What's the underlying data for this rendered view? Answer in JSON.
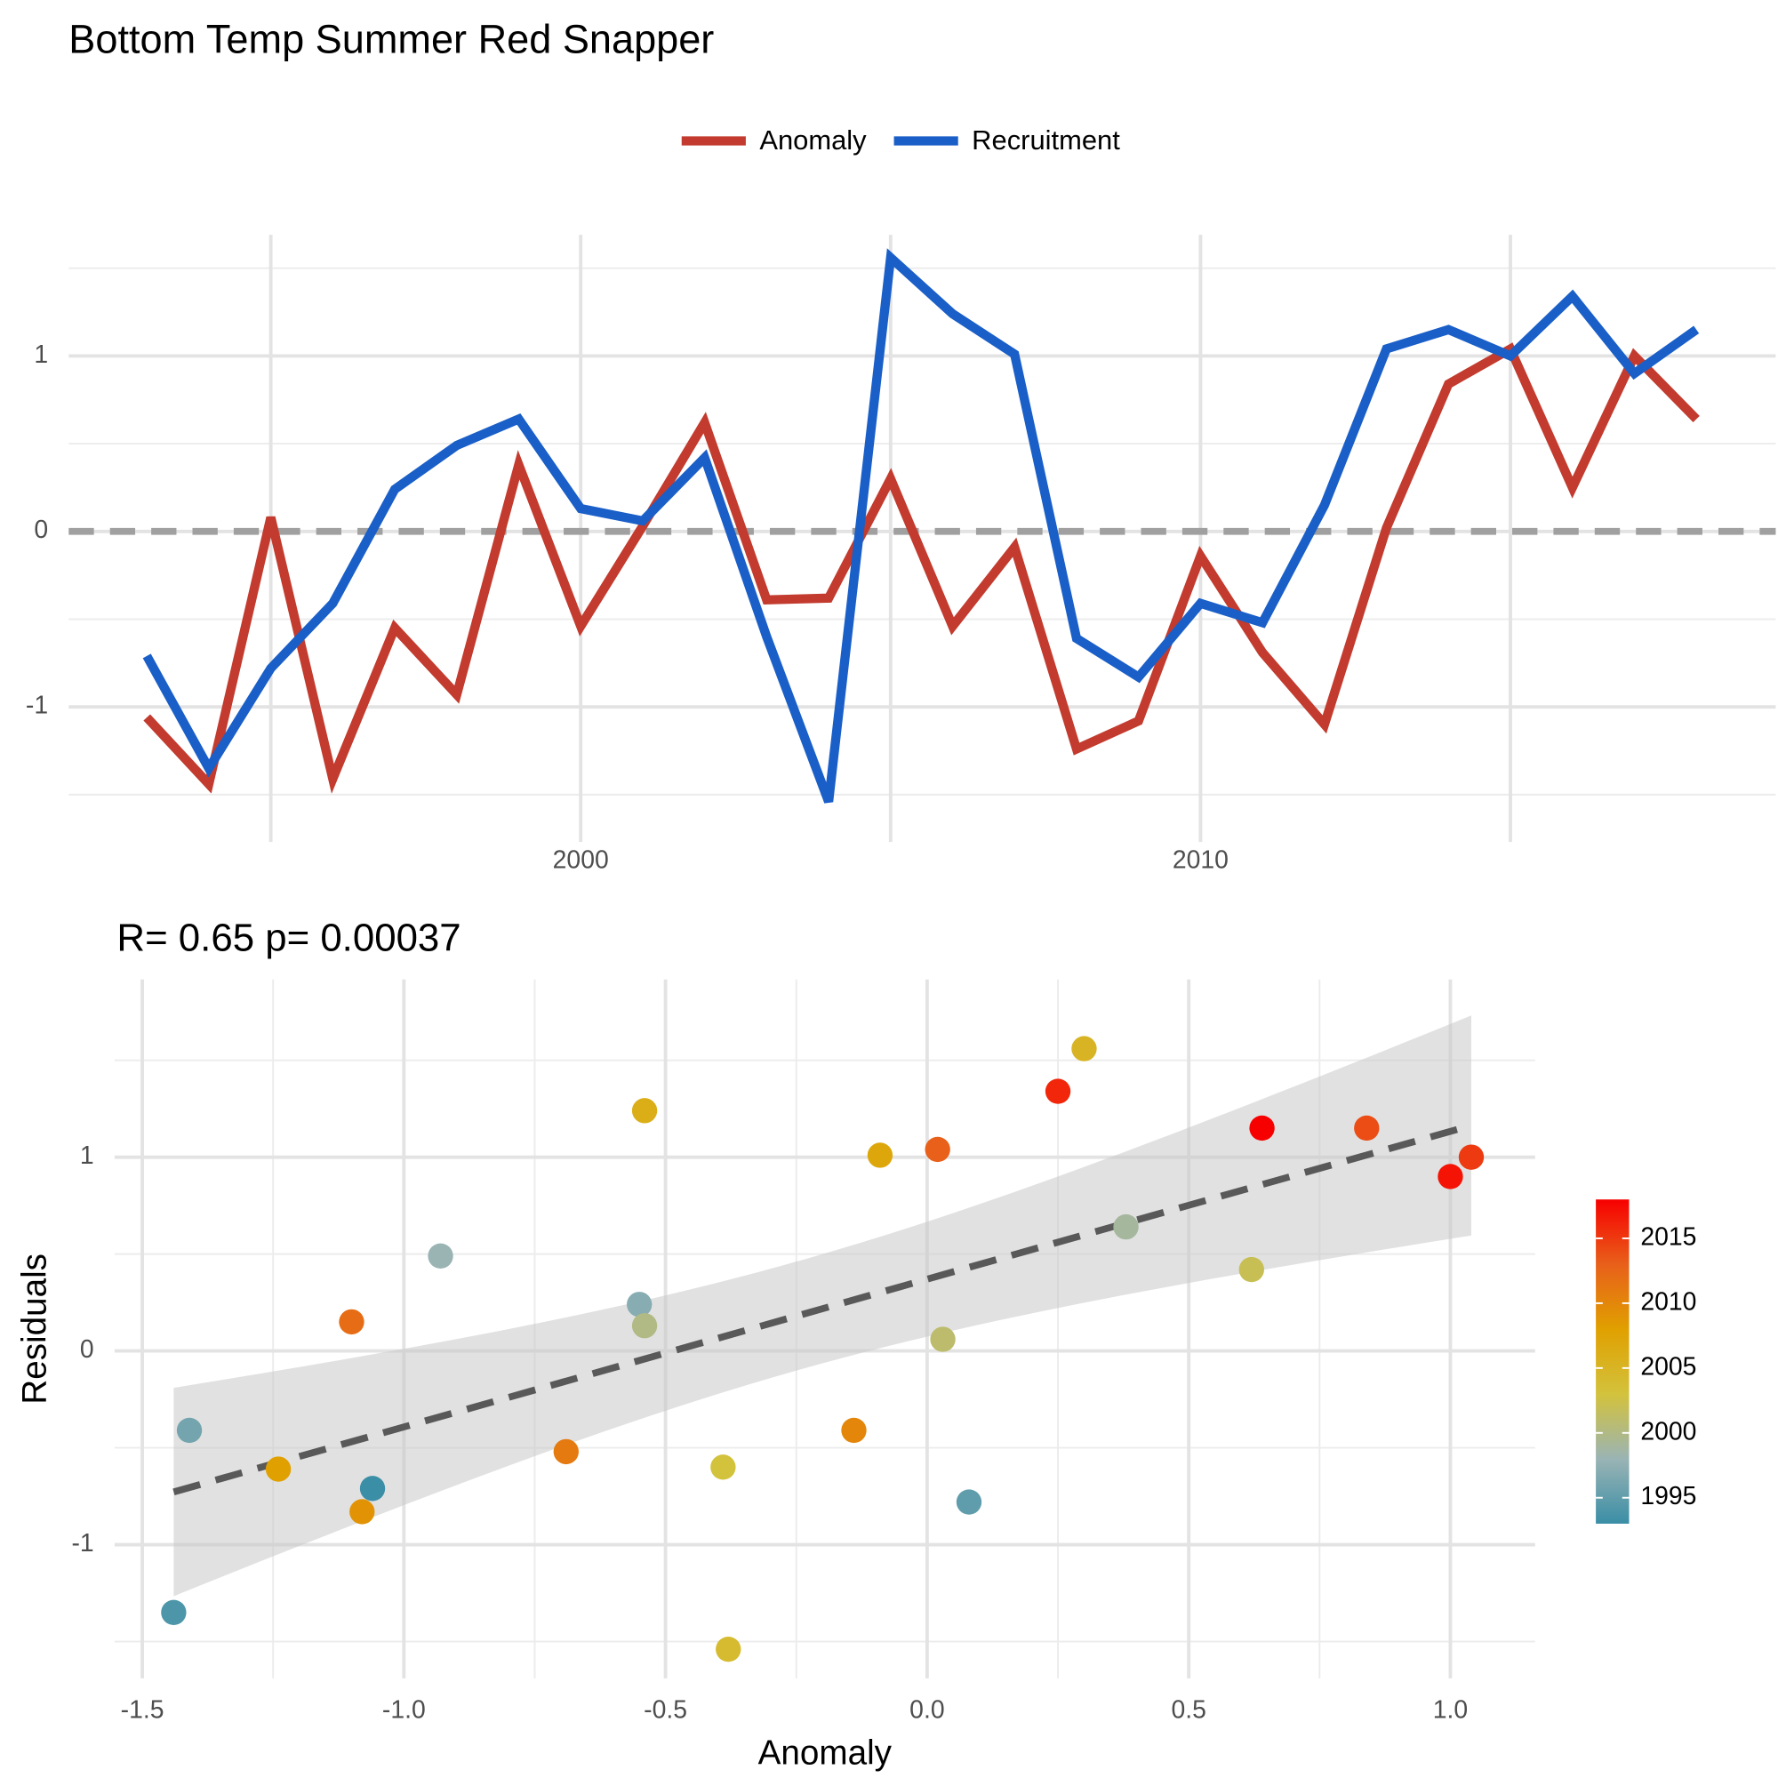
{
  "chart_data": [
    {
      "type": "line",
      "title": "Bottom Temp Summer Red Snapper",
      "x": [
        1993,
        1994,
        1995,
        1996,
        1997,
        1998,
        1999,
        2000,
        2001,
        2002,
        2003,
        2004,
        2005,
        2006,
        2007,
        2008,
        2009,
        2010,
        2011,
        2012,
        2013,
        2014,
        2015,
        2016,
        2017,
        2018
      ],
      "series": [
        {
          "name": "Anomaly",
          "color": "#c23b2e",
          "values": [
            -1.06,
            -1.44,
            0.08,
            -1.41,
            -0.55,
            -0.93,
            0.38,
            -0.54,
            0.03,
            0.62,
            -0.39,
            -0.38,
            0.3,
            -0.54,
            -0.09,
            -1.24,
            -1.08,
            -0.14,
            -0.69,
            -1.1,
            0.02,
            0.84,
            1.04,
            0.25,
            1.0,
            0.64
          ]
        },
        {
          "name": "Recruitment",
          "color": "#1a5fc8",
          "values": [
            -0.71,
            -1.35,
            -0.78,
            -0.41,
            0.24,
            0.49,
            0.64,
            0.13,
            0.06,
            0.42,
            -0.6,
            -1.54,
            1.56,
            1.24,
            1.01,
            -0.61,
            -0.83,
            -0.41,
            -0.52,
            0.15,
            1.04,
            1.15,
            1.0,
            1.34,
            0.9,
            1.15
          ]
        }
      ],
      "xlim": [
        1991.74,
        2019.28
      ],
      "xticks": [
        2000,
        2010
      ],
      "xminor": [
        1995,
        2005,
        2015
      ],
      "ylim": [
        -1.77,
        1.69
      ],
      "yticks": [
        -1,
        0,
        1
      ],
      "yminor": [
        -1.5,
        -0.5,
        0.5,
        1.5
      ],
      "hline": 0,
      "grid": true,
      "legend": "top"
    },
    {
      "type": "scatter",
      "subtitle": "R= 0.65  p= 0.00037",
      "xlabel": "Anomaly",
      "ylabel": "Residuals",
      "x": [
        -1.06,
        -1.44,
        0.08,
        -1.41,
        -0.55,
        -0.93,
        0.38,
        -0.54,
        0.03,
        0.62,
        -0.39,
        -0.38,
        0.3,
        -0.54,
        -0.09,
        -1.24,
        -1.08,
        -0.14,
        -0.69,
        -1.1,
        0.02,
        0.84,
        1.04,
        0.25,
        1.0,
        0.64
      ],
      "y": [
        -0.71,
        -1.35,
        -0.78,
        -0.41,
        0.24,
        0.49,
        0.64,
        0.13,
        0.06,
        0.42,
        -0.6,
        -1.54,
        1.56,
        1.24,
        1.01,
        -0.61,
        -0.83,
        -0.41,
        -0.52,
        0.15,
        1.04,
        1.15,
        1.0,
        1.34,
        0.9,
        1.15
      ],
      "color_values": [
        1993,
        1994,
        1995,
        1996,
        1997,
        1998,
        1999,
        2000,
        2001,
        2002,
        2003,
        2004,
        2005,
        2006,
        2007,
        2008,
        2009,
        2010,
        2011,
        2012,
        2013,
        2014,
        2015,
        2016,
        2017,
        2018
      ],
      "colorscale": [
        "#3a8ea6",
        "#9ab4b4",
        "#d3c23c",
        "#e0a000",
        "#e8601a",
        "#f70000"
      ],
      "clim": [
        1993,
        2018
      ],
      "cticks": [
        1995,
        2000,
        2005,
        2010,
        2015
      ],
      "xlim": [
        -1.553,
        1.162
      ],
      "xticks": [
        {
          "value": -1.5,
          "label": "-1.5"
        },
        {
          "value": -1,
          "label": "-1.0"
        },
        {
          "value": -0.5,
          "label": "-0.5"
        },
        {
          "value": 0,
          "label": "0.0"
        },
        {
          "value": 0.5,
          "label": "0.5"
        },
        {
          "value": 1,
          "label": "1.0"
        }
      ],
      "xminor": [
        -1.25,
        -0.75,
        -0.25,
        0.25,
        0.75
      ],
      "ylim": [
        -1.69,
        1.917
      ],
      "yticks": [
        -1,
        0,
        1
      ],
      "yminor": [
        -1.5,
        -0.5,
        0.5,
        1.5
      ],
      "grid": true,
      "fit": "linear"
    }
  ]
}
